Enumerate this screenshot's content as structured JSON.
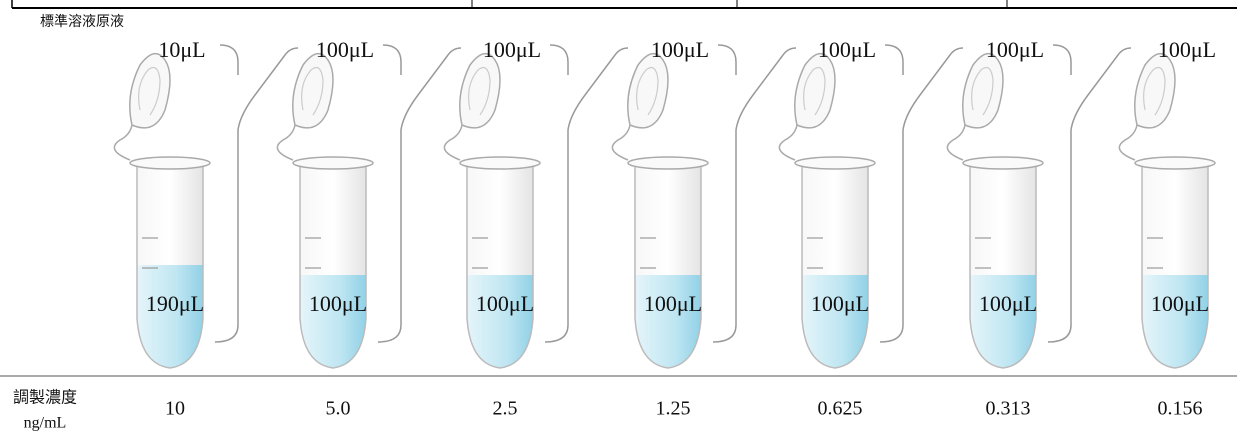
{
  "header": {
    "title": "標準溶液原液"
  },
  "tubes": [
    {
      "top": "10μL",
      "bottom": "190μL",
      "concentration": "10"
    },
    {
      "top": "100μL",
      "bottom": "100μL",
      "concentration": "5.0"
    },
    {
      "top": "100μL",
      "bottom": "100μL",
      "concentration": "2.5"
    },
    {
      "top": "100μL",
      "bottom": "100μL",
      "concentration": "1.25"
    },
    {
      "top": "100μL",
      "bottom": "100μL",
      "concentration": "0.625"
    },
    {
      "top": "100μL",
      "bottom": "100μL",
      "concentration": "0.313"
    },
    {
      "top": "100μL",
      "bottom": "100μL",
      "concentration": "0.156"
    }
  ],
  "row_label": {
    "name": "調製濃度",
    "unit": "ng/mL"
  }
}
